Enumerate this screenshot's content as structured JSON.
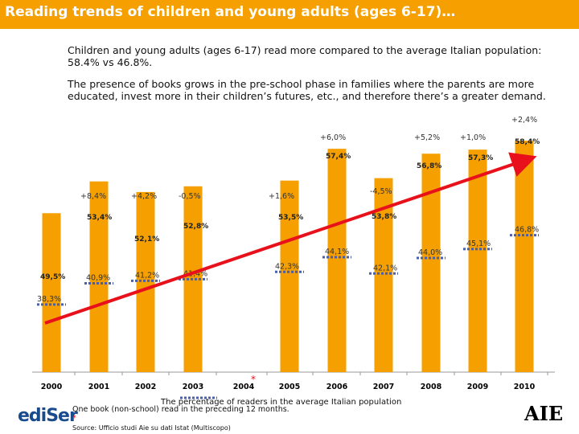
{
  "title": "Reading trends of children and young adults (ages 6-17)…",
  "paragraph1": "Children and young adults (ages 6-17) read more compared to the average Italian population: 58.4% vs 46.8%.",
  "paragraph2": "The presence of books grows in the pre-school phase in families where the parents are more educated, invest more in their children’s futures, etc., and therefore there’s a greater demand.",
  "colors": {
    "accent": "#f5a000",
    "bar": "#f5a000",
    "trend": "#e8101a",
    "average_marker": "#4a5fa8"
  },
  "chart_data": {
    "type": "bar",
    "categories": [
      "2000",
      "2001",
      "2002",
      "2003",
      "2004",
      "2005",
      "2006",
      "2007",
      "2008",
      "2009",
      "2010"
    ],
    "category_marks": [
      "",
      "",
      "",
      "",
      "*",
      "",
      "",
      "",
      "",
      "",
      ""
    ],
    "series": [
      {
        "values": [
          49.5,
          53.4,
          52.1,
          52.8,
          null,
          53.5,
          57.4,
          53.8,
          56.8,
          57.3,
          58.4
        ],
        "labels": [
          "49,5%",
          "53,4%",
          "52,1%",
          "52,8%",
          "",
          "53,5%",
          "57,4%",
          "53,8%",
          "56,8%",
          "57,3%",
          "58,4%"
        ],
        "changes": [
          "",
          "+8,4%",
          "+4,2%",
          "-0,5%",
          "",
          "+1,6%",
          "+6,0%",
          "-4,5%",
          "+5,2%",
          "+1,0%",
          "+2,4%"
        ]
      },
      {
        "name": "The percentage of readers in the average Italian population",
        "values": [
          38.3,
          40.9,
          41.2,
          41.4,
          null,
          42.3,
          44.1,
          42.1,
          44.0,
          45.1,
          46.8
        ],
        "labels": [
          "38,3%",
          "40,9%",
          "41,2%",
          "41,4%",
          "",
          "42,3%",
          "44,1%",
          "42,1%",
          "44,0%",
          "45,1%",
          "46,8%"
        ]
      }
    ],
    "trend_line": true
  },
  "footnote1": "One book (non-school) read in the preceding 12 months.",
  "footnote_star": "*",
  "source": "Source: Ufficio studi Aie su dati Istat (Multiscopo)",
  "logo_left": "ediSer",
  "logo_right": "AIE"
}
